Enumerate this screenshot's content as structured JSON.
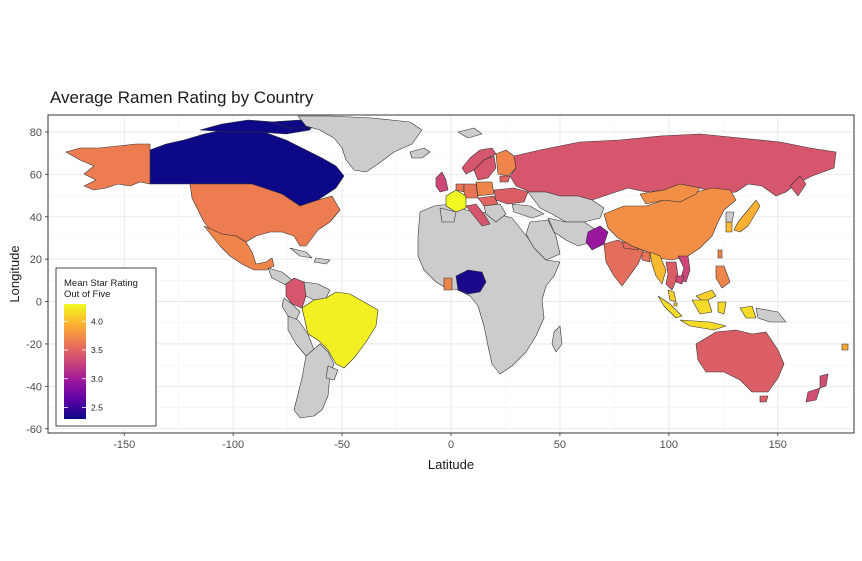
{
  "chart_data": {
    "type": "choropleth",
    "title": "Average Ramen Rating by Country",
    "xlabel": "Latitude",
    "ylabel": "Longitude",
    "xlim": [
      -185,
      185
    ],
    "ylim": [
      -62,
      88
    ],
    "x_ticks": [
      -150,
      -100,
      -50,
      0,
      50,
      100,
      150
    ],
    "y_ticks": [
      -60,
      -40,
      -20,
      0,
      20,
      40,
      60,
      80
    ],
    "grid": true,
    "no_data_color": "#cccccc",
    "border_color": "#333333",
    "legend": {
      "title_lines": [
        "Mean Star Rating",
        "Out of Five"
      ],
      "placement": "bottom-left",
      "min": 2.3,
      "max": 4.3,
      "ticks": [
        2.5,
        3.0,
        3.5,
        4.0
      ],
      "tick_labels": [
        "2.5",
        "3.0",
        "3.5",
        "4.0"
      ],
      "palette": [
        "#0d0887",
        "#5c01a6",
        "#9c179e",
        "#cc4778",
        "#ed7953",
        "#fdb42f",
        "#f0f921"
      ]
    },
    "regions": [
      {
        "name": "Canada",
        "value": 2.3
      },
      {
        "name": "United States",
        "value": 3.65
      },
      {
        "name": "Alaska",
        "value": 3.65
      },
      {
        "name": "Mexico",
        "value": 3.7
      },
      {
        "name": "Colombia",
        "value": 3.4
      },
      {
        "name": "Brazil",
        "value": 4.25
      },
      {
        "name": "Nigeria",
        "value": 2.35
      },
      {
        "name": "Ghana",
        "value": 3.7
      },
      {
        "name": "United Kingdom",
        "value": 3.3
      },
      {
        "name": "France",
        "value": 4.3
      },
      {
        "name": "Netherlands",
        "value": 3.6
      },
      {
        "name": "Germany",
        "value": 3.6
      },
      {
        "name": "Poland",
        "value": 3.7
      },
      {
        "name": "Hungary",
        "value": 3.5
      },
      {
        "name": "Italy",
        "value": 3.4
      },
      {
        "name": "Finland",
        "value": 3.7
      },
      {
        "name": "Sweden",
        "value": 3.4
      },
      {
        "name": "Norway",
        "value": 3.4
      },
      {
        "name": "Estonia",
        "value": 3.5
      },
      {
        "name": "Ukraine",
        "value": 3.45
      },
      {
        "name": "Russia",
        "value": 3.4
      },
      {
        "name": "Pakistan",
        "value": 2.95
      },
      {
        "name": "India",
        "value": 3.55
      },
      {
        "name": "Nepal",
        "value": 3.55
      },
      {
        "name": "Bangladesh",
        "value": 3.6
      },
      {
        "name": "China",
        "value": 3.75
      },
      {
        "name": "Mongolia",
        "value": 3.75
      },
      {
        "name": "Myanmar",
        "value": 4.0
      },
      {
        "name": "Thailand",
        "value": 3.45
      },
      {
        "name": "Vietnam",
        "value": 3.3
      },
      {
        "name": "Cambodia",
        "value": 3.3
      },
      {
        "name": "Malaysia",
        "value": 4.1
      },
      {
        "name": "Indonesia",
        "value": 4.15
      },
      {
        "name": "Philippines",
        "value": 3.7
      },
      {
        "name": "Taiwan",
        "value": 3.7
      },
      {
        "name": "South Korea",
        "value": 4.0
      },
      {
        "name": "Japan",
        "value": 3.95
      },
      {
        "name": "Singapore",
        "value": 4.1
      },
      {
        "name": "Australia",
        "value": 3.45
      },
      {
        "name": "New Zealand",
        "value": 3.35
      },
      {
        "name": "Fiji",
        "value": 3.9
      }
    ]
  }
}
